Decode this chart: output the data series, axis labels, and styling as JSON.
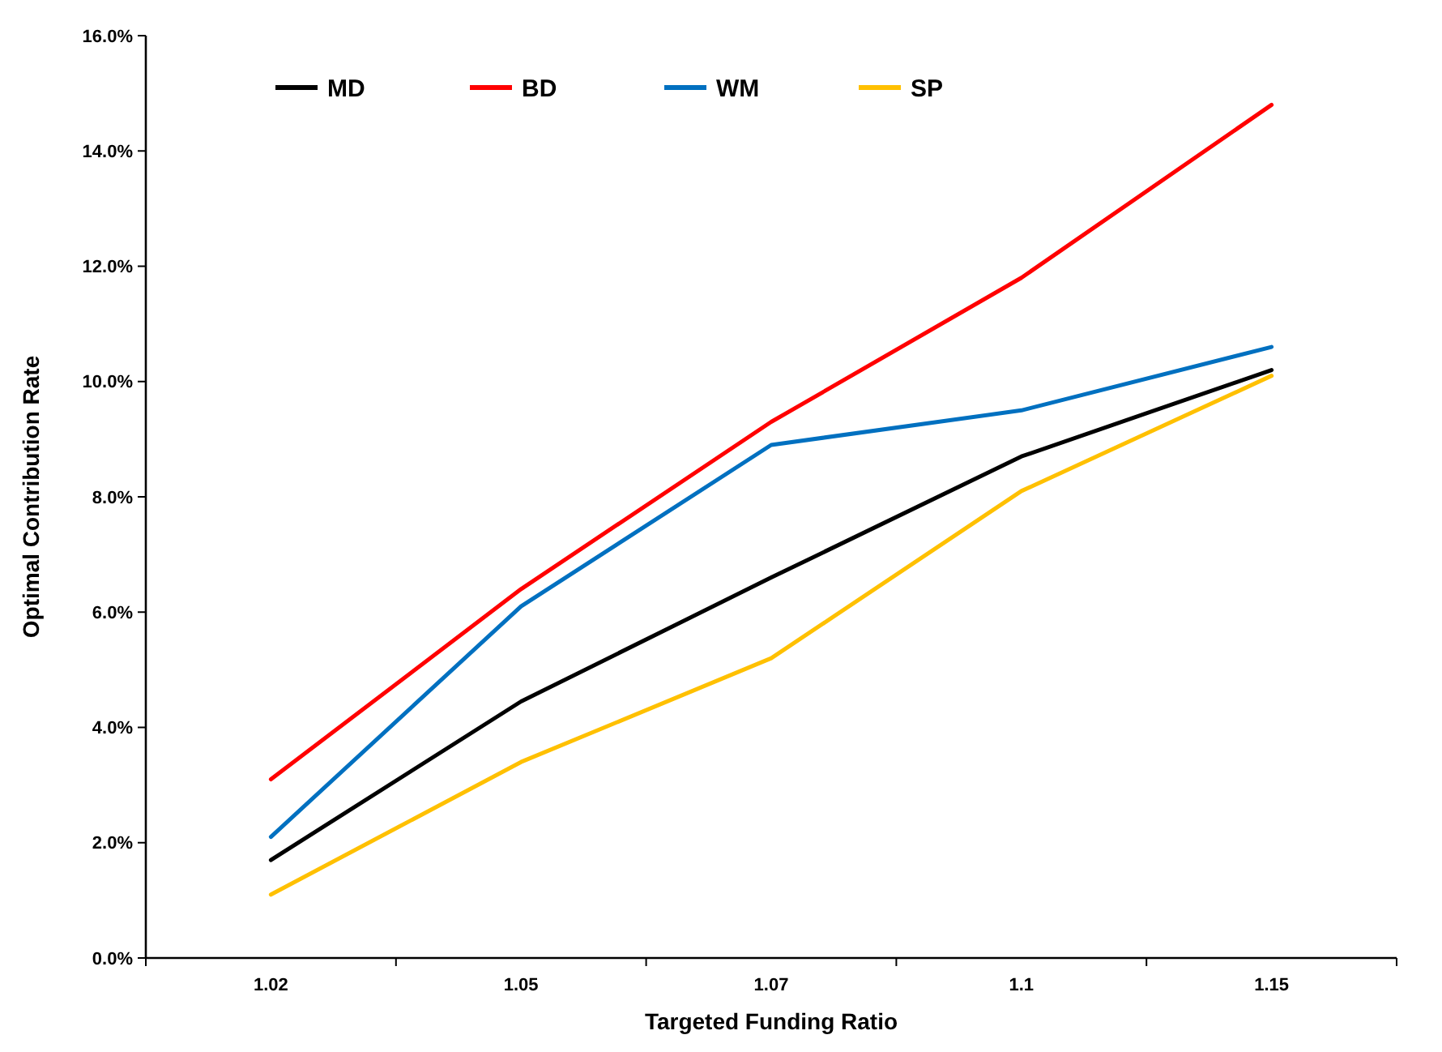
{
  "chart_data": {
    "type": "line",
    "xlabel": "Targeted Funding Ratio",
    "ylabel": "Optimal Contribution Rate",
    "categories": [
      "1.02",
      "1.05",
      "1.07",
      "1.1",
      "1.15"
    ],
    "series": [
      {
        "name": "MD",
        "color": "#000000",
        "values": [
          1.7,
          4.45,
          6.6,
          8.7,
          10.2
        ]
      },
      {
        "name": "BD",
        "color": "#ff0000",
        "values": [
          3.1,
          6.4,
          9.3,
          11.8,
          14.8
        ]
      },
      {
        "name": "WM",
        "color": "#0070c0",
        "values": [
          2.1,
          6.1,
          8.9,
          9.5,
          10.6
        ]
      },
      {
        "name": "SP",
        "color": "#ffc000",
        "values": [
          1.1,
          3.4,
          5.2,
          8.1,
          10.1
        ]
      }
    ],
    "ylim": [
      0,
      16
    ],
    "yticks": [
      {
        "value": 0,
        "label": "0.0%"
      },
      {
        "value": 2,
        "label": "2.0%"
      },
      {
        "value": 4,
        "label": "4.0%"
      },
      {
        "value": 6,
        "label": "6.0%"
      },
      {
        "value": 8,
        "label": "8.0%"
      },
      {
        "value": 10,
        "label": "10.0%"
      },
      {
        "value": 12,
        "label": "12.0%"
      },
      {
        "value": 14,
        "label": "14.0%"
      },
      {
        "value": 16,
        "label": "16.0%"
      }
    ],
    "grid": false,
    "legend": "top left",
    "marker": "none",
    "line_style": "solid"
  }
}
